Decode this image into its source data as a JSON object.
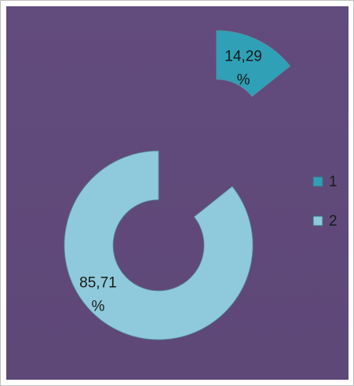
{
  "chart_data": {
    "type": "doughnut",
    "categories": [
      "1",
      "2"
    ],
    "values": [
      14.29,
      85.71
    ],
    "value_labels": [
      "14,29 %",
      "85,71 %"
    ],
    "colors": [
      "#2fa0b6",
      "#8ecadb"
    ],
    "exploded": [
      true,
      false
    ],
    "legend": "right"
  }
}
